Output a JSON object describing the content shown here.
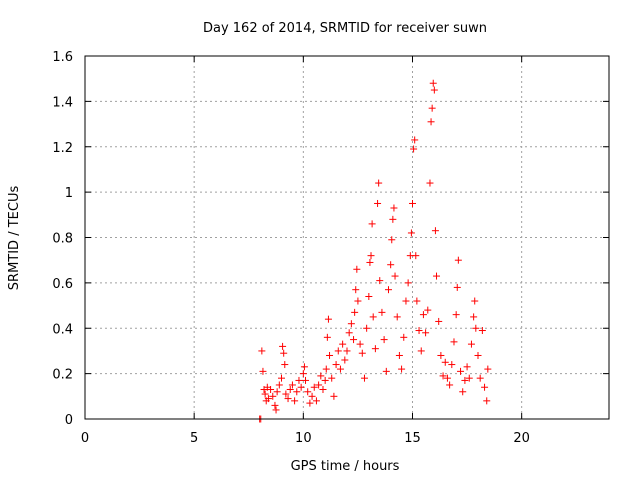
{
  "chart_data": {
    "type": "scatter",
    "title": "Day 162 of 2014, SRMTID for receiver suwn",
    "xlabel": "GPS time / hours",
    "ylabel": "SRMTID / TECUs",
    "xlim": [
      0,
      24
    ],
    "ylim": [
      0,
      1.6
    ],
    "x_ticks": [
      0,
      5,
      10,
      15,
      20
    ],
    "x_tick_labels": [
      "0",
      "5",
      "10",
      "15",
      "20"
    ],
    "y_ticks": [
      0,
      0.2,
      0.4,
      0.6,
      0.8,
      1.0,
      1.2,
      1.4,
      1.6
    ],
    "y_tick_labels": [
      "0",
      "0.2",
      "0.4",
      "0.6",
      "0.8",
      "1",
      "1.2",
      "1.4",
      "1.6"
    ],
    "grid": true,
    "marker": "+",
    "marker_color": "#ff0000",
    "series": [
      {
        "name": "SRMTID",
        "points": [
          [
            8.0,
            0.0
          ],
          [
            8.05,
            0.0
          ],
          [
            8.1,
            0.3
          ],
          [
            8.15,
            0.21
          ],
          [
            8.2,
            0.13
          ],
          [
            8.25,
            0.11
          ],
          [
            8.3,
            0.08
          ],
          [
            8.35,
            0.14
          ],
          [
            8.4,
            0.09
          ],
          [
            8.5,
            0.13
          ],
          [
            8.6,
            0.1
          ],
          [
            8.7,
            0.06
          ],
          [
            8.75,
            0.04
          ],
          [
            8.8,
            0.12
          ],
          [
            8.9,
            0.15
          ],
          [
            9.0,
            0.18
          ],
          [
            9.05,
            0.32
          ],
          [
            9.1,
            0.29
          ],
          [
            9.15,
            0.24
          ],
          [
            9.2,
            0.11
          ],
          [
            9.3,
            0.09
          ],
          [
            9.4,
            0.13
          ],
          [
            9.5,
            0.15
          ],
          [
            9.6,
            0.08
          ],
          [
            9.7,
            0.12
          ],
          [
            9.8,
            0.17
          ],
          [
            9.9,
            0.14
          ],
          [
            10.0,
            0.2
          ],
          [
            10.05,
            0.23
          ],
          [
            10.1,
            0.17
          ],
          [
            10.2,
            0.12
          ],
          [
            10.3,
            0.07
          ],
          [
            10.4,
            0.1
          ],
          [
            10.5,
            0.14
          ],
          [
            10.6,
            0.08
          ],
          [
            10.7,
            0.15
          ],
          [
            10.8,
            0.19
          ],
          [
            10.9,
            0.13
          ],
          [
            11.0,
            0.17
          ],
          [
            11.05,
            0.22
          ],
          [
            11.1,
            0.36
          ],
          [
            11.15,
            0.44
          ],
          [
            11.2,
            0.28
          ],
          [
            11.3,
            0.18
          ],
          [
            11.4,
            0.1
          ],
          [
            11.5,
            0.24
          ],
          [
            11.6,
            0.3
          ],
          [
            11.7,
            0.22
          ],
          [
            11.8,
            0.33
          ],
          [
            11.9,
            0.26
          ],
          [
            12.0,
            0.3
          ],
          [
            12.1,
            0.38
          ],
          [
            12.2,
            0.42
          ],
          [
            12.3,
            0.35
          ],
          [
            12.35,
            0.47
          ],
          [
            12.4,
            0.57
          ],
          [
            12.45,
            0.66
          ],
          [
            12.5,
            0.52
          ],
          [
            12.6,
            0.33
          ],
          [
            12.7,
            0.29
          ],
          [
            12.8,
            0.18
          ],
          [
            12.9,
            0.4
          ],
          [
            13.0,
            0.54
          ],
          [
            13.05,
            0.69
          ],
          [
            13.1,
            0.72
          ],
          [
            13.15,
            0.86
          ],
          [
            13.2,
            0.45
          ],
          [
            13.3,
            0.31
          ],
          [
            13.4,
            0.95
          ],
          [
            13.45,
            1.04
          ],
          [
            13.5,
            0.61
          ],
          [
            13.6,
            0.47
          ],
          [
            13.7,
            0.35
          ],
          [
            13.8,
            0.21
          ],
          [
            13.9,
            0.57
          ],
          [
            14.0,
            0.68
          ],
          [
            14.05,
            0.79
          ],
          [
            14.1,
            0.88
          ],
          [
            14.15,
            0.93
          ],
          [
            14.2,
            0.63
          ],
          [
            14.3,
            0.45
          ],
          [
            14.4,
            0.28
          ],
          [
            14.5,
            0.22
          ],
          [
            14.6,
            0.36
          ],
          [
            14.7,
            0.52
          ],
          [
            14.8,
            0.6
          ],
          [
            14.9,
            0.72
          ],
          [
            14.95,
            0.82
          ],
          [
            15.0,
            0.95
          ],
          [
            15.05,
            1.19
          ],
          [
            15.1,
            1.23
          ],
          [
            15.15,
            0.72
          ],
          [
            15.2,
            0.52
          ],
          [
            15.3,
            0.39
          ],
          [
            15.4,
            0.3
          ],
          [
            15.5,
            0.46
          ],
          [
            15.6,
            0.38
          ],
          [
            15.7,
            0.48
          ],
          [
            15.8,
            1.04
          ],
          [
            15.85,
            1.31
          ],
          [
            15.9,
            1.37
          ],
          [
            15.95,
            1.48
          ],
          [
            16.0,
            1.45
          ],
          [
            16.05,
            0.83
          ],
          [
            16.1,
            0.63
          ],
          [
            16.2,
            0.43
          ],
          [
            16.3,
            0.28
          ],
          [
            16.4,
            0.19
          ],
          [
            16.5,
            0.25
          ],
          [
            16.6,
            0.18
          ],
          [
            16.7,
            0.15
          ],
          [
            16.8,
            0.24
          ],
          [
            16.9,
            0.34
          ],
          [
            17.0,
            0.46
          ],
          [
            17.05,
            0.58
          ],
          [
            17.1,
            0.7
          ],
          [
            17.2,
            0.21
          ],
          [
            17.3,
            0.12
          ],
          [
            17.4,
            0.17
          ],
          [
            17.5,
            0.23
          ],
          [
            17.6,
            0.18
          ],
          [
            17.7,
            0.33
          ],
          [
            17.8,
            0.45
          ],
          [
            17.85,
            0.52
          ],
          [
            17.9,
            0.4
          ],
          [
            18.0,
            0.28
          ],
          [
            18.1,
            0.18
          ],
          [
            18.2,
            0.39
          ],
          [
            18.3,
            0.14
          ],
          [
            18.4,
            0.08
          ],
          [
            18.45,
            0.22
          ]
        ]
      }
    ]
  }
}
